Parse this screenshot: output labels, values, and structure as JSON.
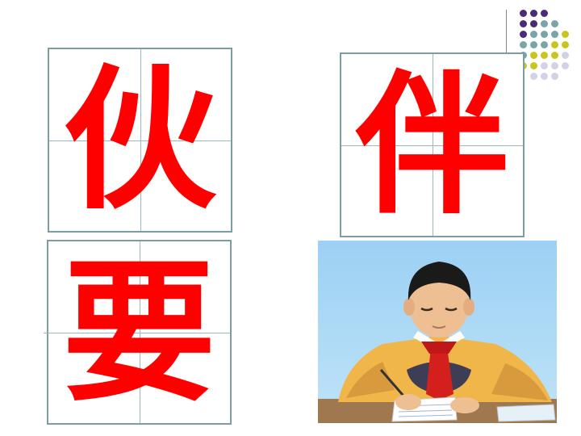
{
  "characters": {
    "top_left": "伙",
    "top_right": "伴",
    "bottom_left": "要"
  },
  "colors": {
    "character": "#ff0000",
    "grid_border": "#7c9ea3",
    "dot_purple": "#4b2a7a",
    "dot_teal": "#7aa5a8",
    "dot_olive": "#c8c51e",
    "dot_lavender": "#d4d0e6"
  },
  "photo": {
    "subject": "boy-writing-at-desk"
  }
}
